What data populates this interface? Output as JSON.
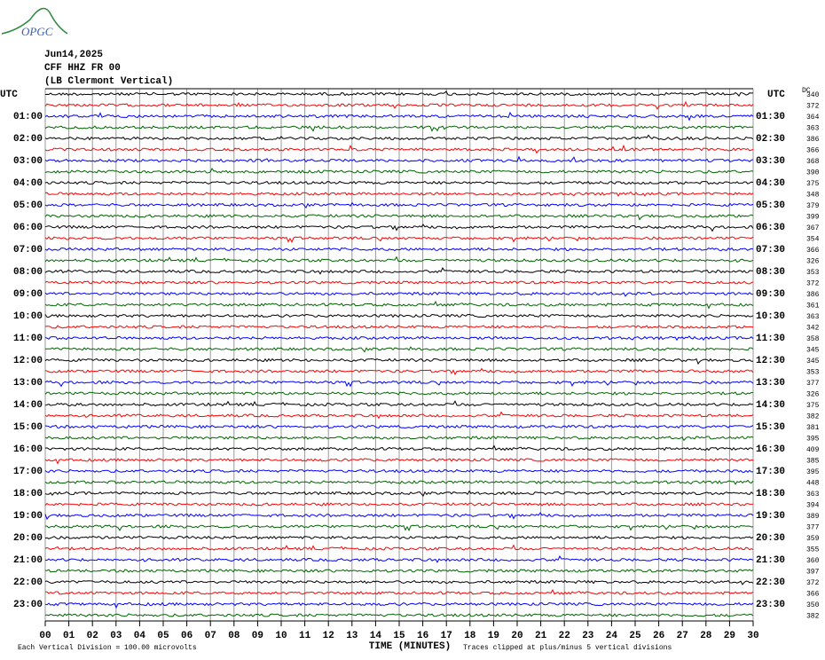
{
  "logo": "OPGC",
  "header": {
    "date": "Jun14,2025",
    "station": "CFF HHZ FR 00",
    "location": "(LB Clermont Vertical)"
  },
  "chart_data": {
    "type": "helicorder",
    "left_label": "UTC",
    "right_label": "UTC",
    "hour_labels": [
      "01:00",
      "02:00",
      "03:00",
      "04:00",
      "05:00",
      "06:00",
      "07:00",
      "08:00",
      "09:00",
      "10:00",
      "11:00",
      "12:00",
      "13:00",
      "14:00",
      "15:00",
      "16:00",
      "17:00",
      "18:00",
      "19:00",
      "20:00",
      "21:00",
      "22:00",
      "23:00"
    ],
    "half_labels": [
      "01:30",
      "02:30",
      "03:30",
      "04:30",
      "05:30",
      "06:30",
      "07:30",
      "08:30",
      "09:30",
      "10:30",
      "11:30",
      "12:30",
      "13:30",
      "14:30",
      "15:30",
      "16:30",
      "17:30",
      "18:30",
      "19:30",
      "20:30",
      "21:30",
      "22:30",
      "23:30"
    ],
    "dc_label": "DC",
    "dc_values": [
      340,
      372,
      364,
      363,
      386,
      366,
      368,
      390,
      375,
      348,
      379,
      399,
      367,
      354,
      366,
      326,
      353,
      372,
      386,
      361,
      363,
      342,
      358,
      345,
      345,
      353,
      377,
      326,
      375,
      382,
      381,
      395,
      409,
      385,
      395,
      448,
      363,
      394,
      389,
      377,
      359,
      355,
      360,
      397,
      372,
      366,
      350,
      382
    ],
    "trace_colors": [
      "#000000",
      "#ff0000",
      "#0000ff",
      "#006400"
    ],
    "xlim": [
      0,
      30
    ],
    "xticks": [
      {
        "value": 0,
        "label": "00"
      },
      {
        "value": 1,
        "label": "01"
      },
      {
        "value": 2,
        "label": "02"
      },
      {
        "value": 3,
        "label": "03"
      },
      {
        "value": 4,
        "label": "04"
      },
      {
        "value": 5,
        "label": "05"
      },
      {
        "value": 6,
        "label": "06"
      },
      {
        "value": 7,
        "label": "07"
      },
      {
        "value": 8,
        "label": "08"
      },
      {
        "value": 9,
        "label": "09"
      },
      10,
      11,
      12,
      13,
      14,
      15,
      16,
      17,
      18,
      19,
      20,
      21,
      22,
      23,
      24,
      25,
      26,
      27,
      28,
      29,
      30
    ],
    "x_label": "TIME (MINUTES)",
    "scale_note": "Each Vertical Division =  100.00 microvolts",
    "clip_note": "Traces clipped at plus/minus 5 vertical divisions",
    "grid": true
  }
}
